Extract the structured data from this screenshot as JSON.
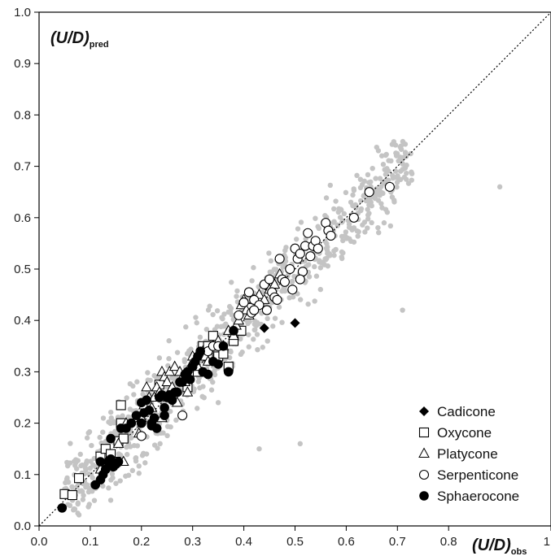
{
  "chart_data": {
    "type": "scatter",
    "y_axis_label": {
      "main": "(U/D)",
      "sub": "pred"
    },
    "x_axis_label": {
      "main": "(U/D)",
      "sub": "obs"
    },
    "xlim": [
      0,
      1
    ],
    "ylim": [
      0,
      1
    ],
    "x_ticks": [
      "0.0",
      "0.1",
      "0.2",
      "0.3",
      "0.4",
      "0.5",
      "0.6",
      "0.7",
      "0.8",
      "1"
    ],
    "x_tick_values": [
      0,
      0.1,
      0.2,
      0.3,
      0.4,
      0.5,
      0.6,
      0.7,
      0.8,
      1.0
    ],
    "y_ticks": [
      "0.0",
      "0.1",
      "0.2",
      "0.3",
      "0.4",
      "0.5",
      "0.6",
      "0.7",
      "0.8",
      "0.9",
      "1.0"
    ],
    "y_tick_values": [
      0,
      0.1,
      0.2,
      0.3,
      0.4,
      0.5,
      0.6,
      0.7,
      0.8,
      0.9,
      1.0
    ],
    "reference_line": {
      "style": "dotted",
      "from": [
        0,
        0
      ],
      "to": [
        1,
        1
      ]
    },
    "legend_position": "bottom-right",
    "background_points": {
      "color": "#c4c4c4",
      "generator": {
        "count": 800,
        "x_range": [
          0.05,
          0.73
        ],
        "spread": 0.04,
        "outliers": [
          [
            0.9,
            0.66
          ],
          [
            0.71,
            0.42
          ],
          [
            0.43,
            0.15
          ],
          [
            0.51,
            0.16
          ],
          [
            0.35,
            0.24
          ],
          [
            0.21,
            0.14
          ],
          [
            0.14,
            0.05
          ]
        ]
      }
    },
    "series": [
      {
        "name": "Cadicone",
        "marker": "diamond-filled",
        "points": [
          [
            0.44,
            0.385
          ],
          [
            0.445,
            0.465
          ],
          [
            0.5,
            0.395
          ]
        ]
      },
      {
        "name": "Oxycone",
        "marker": "square-open",
        "points": [
          [
            0.05,
            0.062
          ],
          [
            0.065,
            0.06
          ],
          [
            0.078,
            0.093
          ],
          [
            0.12,
            0.135
          ],
          [
            0.13,
            0.15
          ],
          [
            0.14,
            0.14
          ],
          [
            0.15,
            0.125
          ],
          [
            0.155,
            0.165
          ],
          [
            0.16,
            0.2
          ],
          [
            0.16,
            0.235
          ],
          [
            0.165,
            0.17
          ],
          [
            0.235,
            0.275
          ],
          [
            0.29,
            0.27
          ],
          [
            0.31,
            0.3
          ],
          [
            0.32,
            0.35
          ],
          [
            0.33,
            0.33
          ],
          [
            0.34,
            0.37
          ],
          [
            0.35,
            0.33
          ],
          [
            0.36,
            0.335
          ],
          [
            0.37,
            0.31
          ],
          [
            0.38,
            0.36
          ],
          [
            0.395,
            0.38
          ],
          [
            0.33,
            0.35
          ]
        ]
      },
      {
        "name": "Platycone",
        "marker": "triangle-open",
        "points": [
          [
            0.12,
            0.11
          ],
          [
            0.14,
            0.12
          ],
          [
            0.155,
            0.16
          ],
          [
            0.17,
            0.2
          ],
          [
            0.19,
            0.21
          ],
          [
            0.195,
            0.18
          ],
          [
            0.2,
            0.21
          ],
          [
            0.205,
            0.235
          ],
          [
            0.21,
            0.27
          ],
          [
            0.215,
            0.25
          ],
          [
            0.22,
            0.23
          ],
          [
            0.225,
            0.25
          ],
          [
            0.23,
            0.27
          ],
          [
            0.235,
            0.26
          ],
          [
            0.24,
            0.3
          ],
          [
            0.245,
            0.29
          ],
          [
            0.25,
            0.28
          ],
          [
            0.255,
            0.3
          ],
          [
            0.26,
            0.27
          ],
          [
            0.265,
            0.31
          ],
          [
            0.27,
            0.24
          ],
          [
            0.275,
            0.3
          ],
          [
            0.28,
            0.29
          ],
          [
            0.285,
            0.28
          ],
          [
            0.29,
            0.26
          ],
          [
            0.295,
            0.31
          ],
          [
            0.3,
            0.33
          ],
          [
            0.305,
            0.32
          ],
          [
            0.31,
            0.31
          ],
          [
            0.32,
            0.34
          ],
          [
            0.325,
            0.33
          ],
          [
            0.33,
            0.32
          ],
          [
            0.34,
            0.35
          ],
          [
            0.35,
            0.36
          ],
          [
            0.36,
            0.35
          ],
          [
            0.37,
            0.38
          ],
          [
            0.38,
            0.37
          ],
          [
            0.385,
            0.39
          ],
          [
            0.39,
            0.4
          ],
          [
            0.395,
            0.43
          ],
          [
            0.4,
            0.44
          ],
          [
            0.405,
            0.42
          ],
          [
            0.41,
            0.41
          ],
          [
            0.42,
            0.44
          ],
          [
            0.43,
            0.45
          ],
          [
            0.44,
            0.44
          ],
          [
            0.45,
            0.46
          ],
          [
            0.46,
            0.47
          ],
          [
            0.47,
            0.49
          ],
          [
            0.165,
            0.125
          ],
          [
            0.24,
            0.21
          ]
        ]
      },
      {
        "name": "Serpenticone",
        "marker": "circle-open",
        "points": [
          [
            0.2,
            0.175
          ],
          [
            0.28,
            0.215
          ],
          [
            0.33,
            0.34
          ],
          [
            0.34,
            0.35
          ],
          [
            0.35,
            0.35
          ],
          [
            0.39,
            0.41
          ],
          [
            0.4,
            0.435
          ],
          [
            0.41,
            0.455
          ],
          [
            0.415,
            0.415
          ],
          [
            0.42,
            0.44
          ],
          [
            0.43,
            0.43
          ],
          [
            0.44,
            0.47
          ],
          [
            0.445,
            0.42
          ],
          [
            0.45,
            0.48
          ],
          [
            0.455,
            0.455
          ],
          [
            0.46,
            0.445
          ],
          [
            0.465,
            0.44
          ],
          [
            0.47,
            0.52
          ],
          [
            0.475,
            0.48
          ],
          [
            0.48,
            0.475
          ],
          [
            0.49,
            0.5
          ],
          [
            0.495,
            0.46
          ],
          [
            0.5,
            0.54
          ],
          [
            0.505,
            0.52
          ],
          [
            0.51,
            0.53
          ],
          [
            0.515,
            0.495
          ],
          [
            0.52,
            0.545
          ],
          [
            0.525,
            0.57
          ],
          [
            0.53,
            0.525
          ],
          [
            0.535,
            0.545
          ],
          [
            0.54,
            0.555
          ],
          [
            0.545,
            0.54
          ],
          [
            0.56,
            0.59
          ],
          [
            0.565,
            0.575
          ],
          [
            0.57,
            0.565
          ],
          [
            0.615,
            0.6
          ],
          [
            0.645,
            0.65
          ],
          [
            0.685,
            0.66
          ],
          [
            0.42,
            0.42
          ],
          [
            0.51,
            0.48
          ]
        ]
      },
      {
        "name": "Sphaerocone",
        "marker": "circle-filled",
        "points": [
          [
            0.045,
            0.035
          ],
          [
            0.11,
            0.08
          ],
          [
            0.12,
            0.09
          ],
          [
            0.125,
            0.1
          ],
          [
            0.13,
            0.11
          ],
          [
            0.135,
            0.125
          ],
          [
            0.14,
            0.13
          ],
          [
            0.145,
            0.115
          ],
          [
            0.15,
            0.12
          ],
          [
            0.155,
            0.125
          ],
          [
            0.16,
            0.19
          ],
          [
            0.17,
            0.19
          ],
          [
            0.18,
            0.2
          ],
          [
            0.19,
            0.215
          ],
          [
            0.2,
            0.2
          ],
          [
            0.205,
            0.22
          ],
          [
            0.21,
            0.245
          ],
          [
            0.215,
            0.225
          ],
          [
            0.22,
            0.2
          ],
          [
            0.225,
            0.21
          ],
          [
            0.23,
            0.19
          ],
          [
            0.235,
            0.25
          ],
          [
            0.24,
            0.255
          ],
          [
            0.245,
            0.23
          ],
          [
            0.25,
            0.25
          ],
          [
            0.255,
            0.255
          ],
          [
            0.26,
            0.245
          ],
          [
            0.265,
            0.26
          ],
          [
            0.27,
            0.26
          ],
          [
            0.275,
            0.28
          ],
          [
            0.28,
            0.28
          ],
          [
            0.285,
            0.295
          ],
          [
            0.29,
            0.3
          ],
          [
            0.295,
            0.285
          ],
          [
            0.3,
            0.31
          ],
          [
            0.305,
            0.32
          ],
          [
            0.31,
            0.33
          ],
          [
            0.315,
            0.34
          ],
          [
            0.32,
            0.3
          ],
          [
            0.33,
            0.295
          ],
          [
            0.34,
            0.32
          ],
          [
            0.35,
            0.315
          ],
          [
            0.36,
            0.35
          ],
          [
            0.37,
            0.3
          ],
          [
            0.38,
            0.38
          ],
          [
            0.14,
            0.17
          ],
          [
            0.12,
            0.125
          ],
          [
            0.2,
            0.24
          ],
          [
            0.22,
            0.195
          ],
          [
            0.245,
            0.215
          ]
        ]
      }
    ]
  }
}
